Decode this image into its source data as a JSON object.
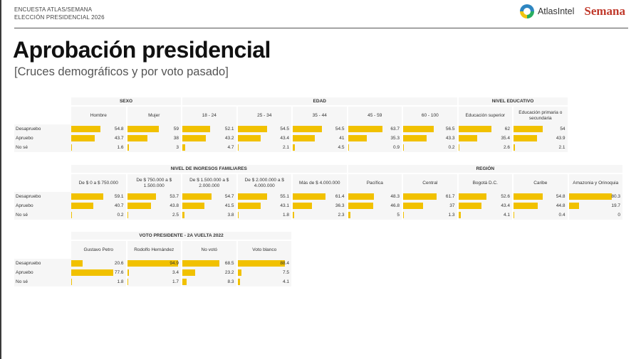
{
  "header": {
    "line1": "ENCUESTA ATLAS/SEMANA",
    "line2": "ELECCIÓN PRESIDENCIAL 2026",
    "atlas_logo_text": "AtlasIntel",
    "semana_logo_text": "Semana"
  },
  "title": "Aprobación presidencial",
  "subtitle": "[Cruces demográficos y por voto pasado]",
  "colors": {
    "bar": "#f1c100",
    "cell_bg": "#f6f6f6",
    "brand_red": "#c0392b"
  },
  "chart_data": {
    "type": "table",
    "row_labels": [
      "Desapruebo",
      "Apruebo",
      "No sé"
    ],
    "tables": [
      {
        "groups": [
          {
            "title": "SEXO",
            "columns": [
              {
                "label": "Hombre",
                "values": [
                  54.8,
                  43.7,
                  1.6
                ]
              },
              {
                "label": "Mujer",
                "values": [
                  59,
                  38,
                  3
                ]
              }
            ]
          },
          {
            "title": "EDAD",
            "columns": [
              {
                "label": "18 - 24",
                "values": [
                  52.1,
                  43.2,
                  4.7
                ]
              },
              {
                "label": "25 - 34",
                "values": [
                  54.5,
                  43.4,
                  2.1
                ]
              },
              {
                "label": "35 - 44",
                "values": [
                  54.5,
                  41,
                  4.5
                ]
              },
              {
                "label": "45 - 59",
                "values": [
                  63.7,
                  35.3,
                  0.9
                ]
              },
              {
                "label": "60 - 100",
                "values": [
                  56.5,
                  43.3,
                  0.2
                ]
              }
            ]
          },
          {
            "title": "NIVEL EDUCATIVO",
            "columns": [
              {
                "label": "Educación superior",
                "values": [
                  62,
                  35.4,
                  2.6
                ]
              },
              {
                "label": "Educación primaria o secundaria",
                "values": [
                  54,
                  43.9,
                  2.1
                ]
              }
            ]
          }
        ]
      },
      {
        "groups": [
          {
            "title": "NIVEL DE INGRESOS FAMILIARES",
            "columns": [
              {
                "label": "De $ 0 a $ 750.000",
                "values": [
                  59.1,
                  40.7,
                  0.2
                ]
              },
              {
                "label": "De $ 750.000 a $ 1.500.000",
                "values": [
                  53.7,
                  43.8,
                  2.5
                ]
              },
              {
                "label": "De $ 1.500.000 a $ 2.000.000",
                "values": [
                  54.7,
                  41.5,
                  3.8
                ]
              },
              {
                "label": "De $ 2.000.000 a $ 4.000.000",
                "values": [
                  55.1,
                  43.1,
                  1.8
                ]
              },
              {
                "label": "Más de $ 4.000.000",
                "values": [
                  61.4,
                  36.3,
                  2.3
                ]
              }
            ]
          },
          {
            "title": "REGIÓN",
            "columns": [
              {
                "label": "Pacífica",
                "values": [
                  48.3,
                  46.8,
                  5
                ]
              },
              {
                "label": "Central",
                "values": [
                  61.7,
                  37,
                  1.3
                ]
              },
              {
                "label": "Bogotá D.C.",
                "values": [
                  52.6,
                  43.4,
                  4.1
                ]
              },
              {
                "label": "Caribe",
                "values": [
                  54.8,
                  44.8,
                  0.4
                ]
              },
              {
                "label": "Amazonia y Orinoquia",
                "values": [
                  80.3,
                  19.7,
                  0
                ]
              }
            ]
          }
        ]
      },
      {
        "groups": [
          {
            "title": "VOTO PRESIDENTE - 2A VUELTA 2022",
            "columns": [
              {
                "label": "Gustavo Petro",
                "values": [
                  20.6,
                  77.6,
                  1.8
                ]
              },
              {
                "label": "Rodolfo Hernández",
                "values": [
                  94.9,
                  3.4,
                  1.7
                ]
              },
              {
                "label": "No votó",
                "values": [
                  68.5,
                  23.2,
                  8.3
                ]
              },
              {
                "label": "Voto blanco",
                "values": [
                  88.4,
                  7.5,
                  4.1
                ]
              }
            ]
          }
        ]
      }
    ]
  }
}
